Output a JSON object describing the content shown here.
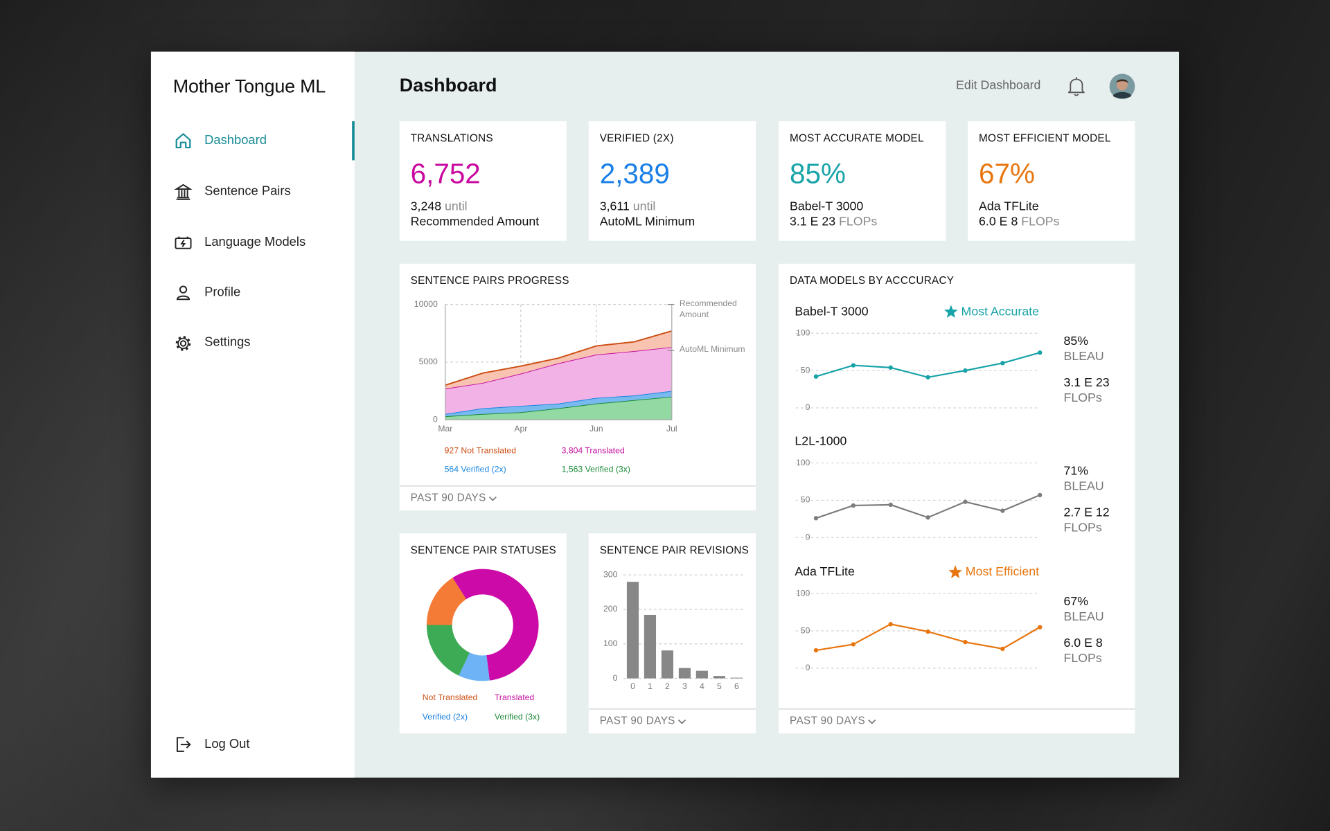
{
  "sidebar": {
    "brand": "Mother Tongue ML",
    "nav": [
      "Dashboard",
      "Sentence Pairs",
      "Language Models",
      "Profile",
      "Settings"
    ],
    "active": 0,
    "logout": "Log Out"
  },
  "header": {
    "title": "Dashboard",
    "edit": "Edit Dashboard"
  },
  "kpis": [
    {
      "label": "TRANSLATIONS",
      "value": "6,752",
      "color": "#c8089f",
      "line1": "3,248",
      "line1_suffix": "until",
      "line2": "Recommended Amount"
    },
    {
      "label": "VERIFIED (2X)",
      "value": "2,389",
      "color": "#1a7fe6",
      "line1": "3,611",
      "line1_suffix": "until",
      "line2": "AutoML Minimum"
    },
    {
      "label": "MOST ACCURATE MODEL",
      "value": "85%",
      "color": "#17a3a8",
      "line1": "Babel-T 3000",
      "line2": "3.1 E 23",
      "line2_suffix": "FLOPs"
    },
    {
      "label": "MOST EFFICIENT MODEL",
      "value": "67%",
      "color": "#e8760f",
      "line1": "Ada TFLite",
      "line2": "6.0 E 8",
      "line2_suffix": "FLOPs"
    }
  ],
  "models_panel": {
    "title": "DATA MODELS BY ACCCURACY",
    "footer": "PAST 90 DAYS"
  },
  "chart_data": [
    {
      "type": "area",
      "title": "SENTENCE PAIRS PROGRESS",
      "footer": "PAST 90 DAYS",
      "stacked": true,
      "categories": [
        "Mar",
        null,
        "Apr",
        null,
        "Jun",
        null,
        "Jul"
      ],
      "series": [
        {
          "name": "927 Not Translated",
          "color": "#cc4e14",
          "fill": "#f8c3b0",
          "values": [
            300,
            850,
            650,
            450,
            750,
            800,
            1400
          ]
        },
        {
          "name": "3,804 Translated",
          "color": "#c5109f",
          "fill": "#f3b2e6",
          "values": [
            2200,
            2200,
            2800,
            3500,
            3750,
            3850,
            3800
          ]
        },
        {
          "name": "564 Verified (2x)",
          "color": "#1a86e0",
          "fill": "#78b9f0",
          "values": [
            200,
            500,
            550,
            400,
            500,
            400,
            500
          ]
        },
        {
          "name": "1,563 Verified (3x)",
          "color": "#1b8a3a",
          "fill": "#92d9a3",
          "values": [
            300,
            500,
            650,
            1000,
            1400,
            1700,
            2000
          ]
        }
      ],
      "ylim": [
        0,
        10000
      ],
      "yticks": [
        0,
        5000,
        10000
      ],
      "grid": true,
      "annotations": [
        {
          "text": "Recommended Amount",
          "value": 10000
        },
        {
          "text": "AutoML Minimum",
          "value": 6000
        }
      ]
    },
    {
      "type": "donut",
      "title": "SENTENCE PAIR STATUSES",
      "categories": [
        "Not Translated",
        "Translated",
        "Verified (2x)",
        "Verified (3x)"
      ],
      "values": [
        16,
        57,
        9,
        18
      ],
      "colors": [
        "#f47b35",
        "#cc0aa8",
        "#6db3f5",
        "#3daa55"
      ],
      "label_colors": [
        "#d0541a",
        "#c5109f",
        "#1a7fe0",
        "#1e8a3a"
      ]
    },
    {
      "type": "bar",
      "title": "SENTENCE PAIR REVISIONS",
      "footer": "PAST 90 DAYS",
      "categories": [
        "0",
        "1",
        "2",
        "3",
        "4",
        "5",
        "6"
      ],
      "values": [
        280,
        184,
        81,
        30,
        22,
        7,
        2
      ],
      "color": "#878787",
      "ylim": [
        0,
        300
      ],
      "yticks": [
        0,
        100,
        200,
        300
      ],
      "grid": true
    },
    {
      "type": "line",
      "title": "Babel-T 3000",
      "badge": "Most Accurate",
      "color": "#17a3a8",
      "values": [
        42,
        57,
        54,
        41,
        50,
        60,
        74
      ],
      "ylim": [
        0,
        100
      ],
      "yticks": [
        0,
        50,
        100
      ],
      "grid": true,
      "stats": {
        "accuracy": "85%",
        "metric": "BLEAU",
        "flops": "3.1 E 23",
        "unit": "FLOPs"
      }
    },
    {
      "type": "line",
      "title": "L2L-1000",
      "color": "#7d7d7d",
      "values": [
        26,
        43,
        44,
        27,
        48,
        36,
        57
      ],
      "ylim": [
        0,
        100
      ],
      "yticks": [
        0,
        50,
        100
      ],
      "grid": true,
      "stats": {
        "accuracy": "71%",
        "metric": "BLEAU",
        "flops": "2.7 E 12",
        "unit": "FLOPs"
      }
    },
    {
      "type": "line",
      "title": "Ada TFLite",
      "badge": "Most Efficient",
      "color": "#e8760f",
      "values": [
        24,
        32,
        59,
        49,
        35,
        26,
        55
      ],
      "ylim": [
        0,
        100
      ],
      "yticks": [
        0,
        50,
        100
      ],
      "grid": true,
      "stats": {
        "accuracy": "67%",
        "metric": "BLEAU",
        "flops": "6.0 E 8",
        "unit": "FLOPs"
      }
    }
  ]
}
